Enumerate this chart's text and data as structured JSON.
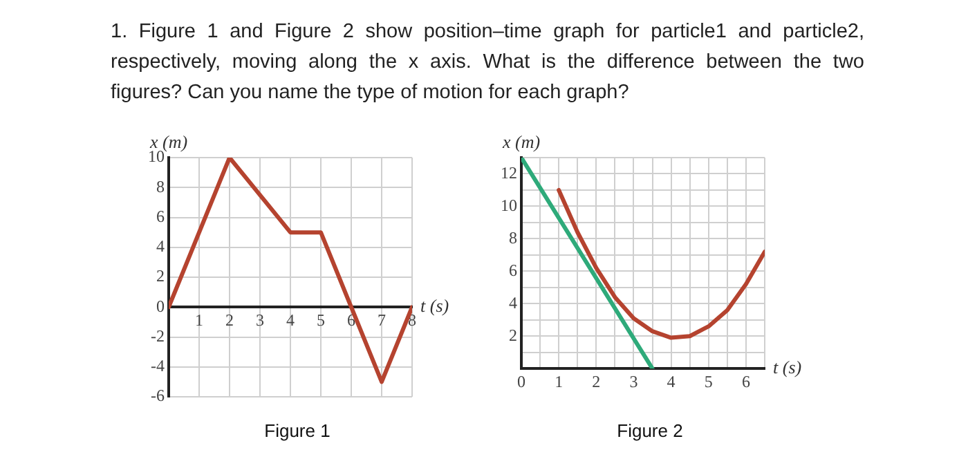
{
  "chart_data": [
    {
      "type": "line",
      "title": "1. Figure 1 and Figure 2 show position–time graph for particle1 and particle2, respectively, moving along the x axis. What is the difference between the two figures? Can you name the type of motion for each graph?",
      "xlabel": "t (s)",
      "ylabel": "x (m)",
      "annotations": [
        "Figure 1"
      ],
      "series": [
        {
          "color": "#b5432f",
          "x": [
            0,
            2,
            4,
            5,
            6,
            7,
            8
          ],
          "values": [
            0,
            10,
            5,
            5,
            0,
            -5,
            0
          ]
        }
      ],
      "xlim": [
        0,
        8
      ],
      "xticks": [
        {
          "value": 0,
          "label": null
        },
        1,
        2,
        3,
        4,
        5,
        6,
        7,
        8
      ],
      "ylim": [
        -6,
        10
      ],
      "yticks": [
        -6,
        -4,
        -2,
        0,
        2,
        4,
        6,
        8,
        10
      ],
      "grid": true,
      "legend": false,
      "marker": "none",
      "line_style": "solid"
    },
    {
      "type": "line",
      "xlabel": "t (s)",
      "ylabel": "x (m)",
      "annotations": [
        "Figure 2"
      ],
      "series": [
        {
          "color": "#2eaa7a",
          "x": [
            0,
            3.5
          ],
          "values": [
            13,
            0
          ]
        },
        {
          "color": "#b5432f",
          "x": [
            1,
            1.5,
            2,
            2.5,
            3,
            3.5,
            4,
            4.5,
            5,
            5.5,
            6,
            6.5
          ],
          "values": [
            11,
            8.4,
            6.2,
            4.4,
            3.1,
            2.3,
            1.9,
            2,
            2.6,
            3.6,
            5.2,
            7.2
          ]
        }
      ],
      "xlim": [
        0,
        6.5
      ],
      "xticks": [
        0,
        {
          "value": 0.5,
          "label": null
        },
        1,
        {
          "value": 1.5,
          "label": null
        },
        2,
        {
          "value": 2.5,
          "label": null
        },
        3,
        {
          "value": 3.5,
          "label": null
        },
        4,
        {
          "value": 4.5,
          "label": null
        },
        5,
        {
          "value": 5.5,
          "label": null
        },
        6,
        {
          "value": 6.5,
          "label": null
        }
      ],
      "ylim": [
        0,
        13
      ],
      "yticks": [
        {
          "value": 1,
          "label": null
        },
        2,
        {
          "value": 3,
          "label": null
        },
        4,
        {
          "value": 5,
          "label": null
        },
        6,
        {
          "value": 7,
          "label": null
        },
        8,
        {
          "value": 9,
          "label": null
        },
        10,
        {
          "value": 11,
          "label": null
        },
        12,
        {
          "value": 13,
          "label": null
        }
      ],
      "grid": true,
      "legend": false,
      "marker": "none",
      "line_style": "solid"
    }
  ]
}
